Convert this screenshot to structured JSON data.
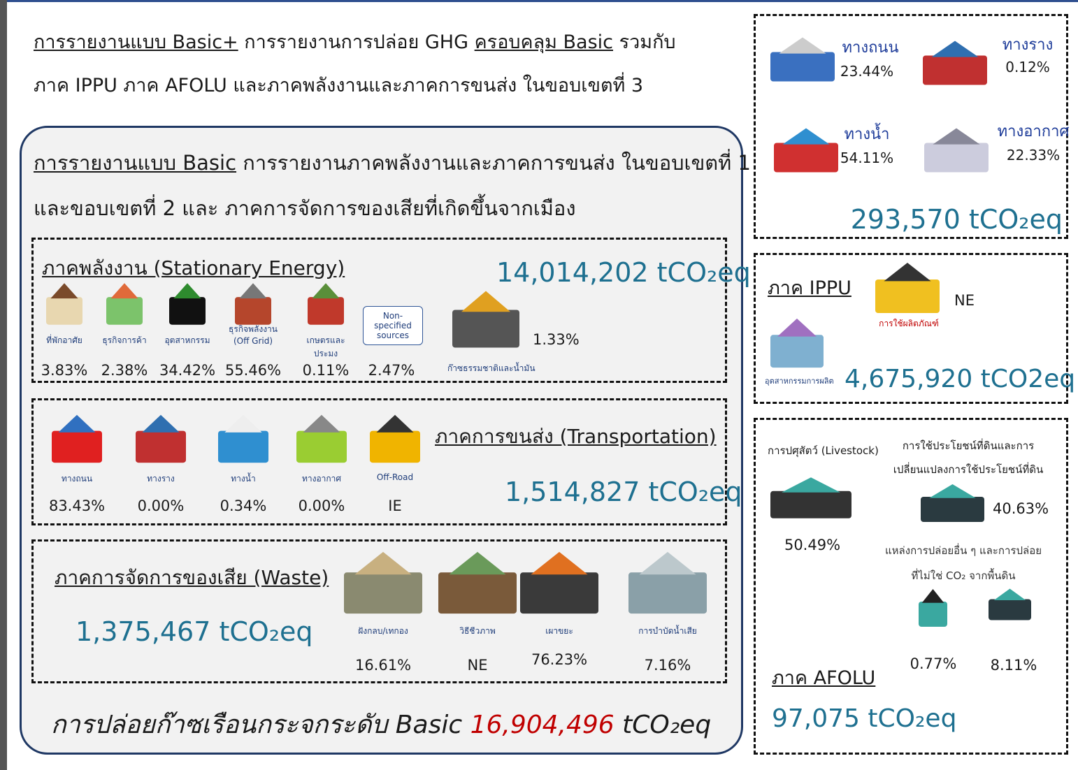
{
  "header": {
    "basic_plus_label": "การรายงานแบบ Basic+",
    "text": "การรายงานการปล่อย GHG",
    "covers": "ครอบคลุม Basic",
    "rest": "รวมกับ",
    "line2": "ภาค IPPU ภาค AFOLU และภาคพลังงานและภาคการขนส่ง ในขอบเขตที่ 3"
  },
  "basic": {
    "label": "การรายงานแบบ Basic",
    "text1": "การรายงานภาคพลังงานและภาคการขนส่ง ในขอบเขตที่ 1",
    "text2": "และขอบเขตที่ 2 และ ภาคการจัดการของเสียที่เกิดขึ้นจากเมือง"
  },
  "stationary": {
    "title": "ภาคพลังงาน (Stationary Energy)",
    "total": "14,014,202 tCO₂eq",
    "items": [
      {
        "label": "ที่พักอาศัย",
        "value": "3.83%"
      },
      {
        "label": "ธุรกิจการค้า",
        "value": "2.38%"
      },
      {
        "label": "อุตสาหกรรม",
        "value": "34.42%"
      },
      {
        "label": "ธุรกิจพลังงาน (Off Grid)",
        "value": "55.46%"
      },
      {
        "label": "เกษตรและประมง",
        "value": "0.11%"
      },
      {
        "label": "Non-specified sources",
        "value": "2.47%"
      },
      {
        "label": "ก๊าซธรรมชาติและน้ำมัน",
        "value": "1.33%"
      }
    ]
  },
  "transport": {
    "title": "ภาคการขนส่ง (Transportation)",
    "total": "1,514,827 tCO₂eq",
    "items": [
      {
        "label": "ทางถนน",
        "value": "83.43%"
      },
      {
        "label": "ทางราง",
        "value": "0.00%"
      },
      {
        "label": "ทางน้ำ",
        "value": "0.34%"
      },
      {
        "label": "ทางอากาศ",
        "value": "0.00%"
      },
      {
        "label": "Off-Road",
        "value": "IE"
      }
    ]
  },
  "waste": {
    "title": "ภาคการจัดการของเสีย (Waste)",
    "total": "1,375,467 tCO₂eq",
    "items": [
      {
        "label": "ฝังกลบ/เทกอง",
        "value": "16.61%"
      },
      {
        "label": "วิธีชีวภาพ",
        "value": "NE"
      },
      {
        "label": "เผาขยะ",
        "value": "76.23%"
      },
      {
        "label": "การบำบัดน้ำเสีย",
        "value": "7.16%"
      }
    ]
  },
  "basic_total": {
    "label": "การปล่อยก๊าซเรือนกระจกระดับ Basic",
    "value": "16,904,496",
    "unit": "tCO₂eq"
  },
  "scope3": {
    "total": "293,570 tCO₂eq",
    "items": [
      {
        "label": "ทางถนน",
        "value": "23.44%"
      },
      {
        "label": "ทางราง",
        "value": "0.12%"
      },
      {
        "label": "ทางน้ำ",
        "value": "54.11%"
      },
      {
        "label": "ทางอากาศ",
        "value": "22.33%"
      }
    ]
  },
  "ippu": {
    "title": "ภาค IPPU",
    "total": "4,675,920 tCO2eq",
    "items": [
      {
        "label": "การใช้ผลิตภัณฑ์",
        "value": "NE"
      },
      {
        "label": "อุตสาหกรรมการผลิต"
      }
    ]
  },
  "afolu": {
    "title": "ภาค AFOLU",
    "total": "97,075 tCO₂eq",
    "items": [
      {
        "label": "การปศุสัตว์ (Livestock)",
        "value": "50.49%"
      },
      {
        "label": [
          "การใช้ประโยชน์ที่ดินและการ",
          "เปลี่ยนแปลงการใช้ประโยชน์ที่ดิน"
        ],
        "value": "40.63%"
      },
      {
        "label": [
          "แหล่งการปล่อยอื่น ๆ และการปล่อย",
          "ที่ไม่ใช่ CO₂ จากพื้นดิน"
        ],
        "values": [
          "0.77%",
          "8.11%"
        ]
      }
    ]
  }
}
